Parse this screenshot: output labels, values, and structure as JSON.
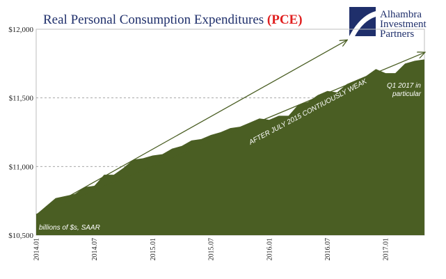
{
  "chart_data": {
    "type": "area",
    "title": "Real Personal Consumption Expenditures",
    "title_accent": "(PCE)",
    "ylim": [
      10500,
      12000
    ],
    "yticks": [
      10500,
      11000,
      11500,
      12000
    ],
    "ytick_labels": [
      "$10,500",
      "$11,000",
      "$11,500",
      "$12,000"
    ],
    "xtick_labels": [
      "2014.01",
      "2014.07",
      "2015.01",
      "2015.07",
      "2016.01",
      "2016.07",
      "2017.01"
    ],
    "grid": true,
    "x": [
      "2014.01",
      "2014.02",
      "2014.03",
      "2014.04",
      "2014.05",
      "2014.06",
      "2014.07",
      "2014.08",
      "2014.09",
      "2014.10",
      "2014.11",
      "2014.12",
      "2015.01",
      "2015.02",
      "2015.03",
      "2015.04",
      "2015.05",
      "2015.06",
      "2015.07",
      "2015.08",
      "2015.09",
      "2015.10",
      "2015.11",
      "2015.12",
      "2016.01",
      "2016.02",
      "2016.03",
      "2016.04",
      "2016.05",
      "2016.06",
      "2016.07",
      "2016.08",
      "2016.09",
      "2016.10",
      "2016.11",
      "2016.12",
      "2017.01",
      "2017.02",
      "2017.03",
      "2017.04",
      "2017.05"
    ],
    "series": [
      {
        "values": [
          10650,
          10710,
          10770,
          10785,
          10800,
          10850,
          10860,
          10940,
          10940,
          10990,
          11050,
          11060,
          11080,
          11090,
          11130,
          11150,
          11190,
          11200,
          11230,
          11250,
          11280,
          11290,
          11320,
          11350,
          11340,
          11370,
          11370,
          11450,
          11470,
          11520,
          11550,
          11540,
          11600,
          11630,
          11660,
          11710,
          11680,
          11680,
          11750,
          11770,
          11780
        ],
        "color": "#4a5e23"
      }
    ],
    "trendlines": [
      {
        "start": [
          "2014.01",
          10650
        ],
        "end": [
          "2016.09",
          11920
        ]
      },
      {
        "start": [
          "2014.01",
          10650
        ],
        "end": [
          "2017.05",
          11830
        ]
      }
    ],
    "annotations": {
      "units": "billions of $s, SAAR",
      "weak": "AFTER JULY 2015 CONTIUOUSLY WEAK",
      "q1_line1": "Q1 2017 in",
      "q1_line2": "particular"
    },
    "colors": {
      "title": "#1f2f6b",
      "accent": "#e02020",
      "trend": "#4a5e23",
      "grid": "#9a9a9a"
    }
  },
  "logo": {
    "line1": "Alhambra",
    "line2": "Investment",
    "line3": "Partners"
  }
}
